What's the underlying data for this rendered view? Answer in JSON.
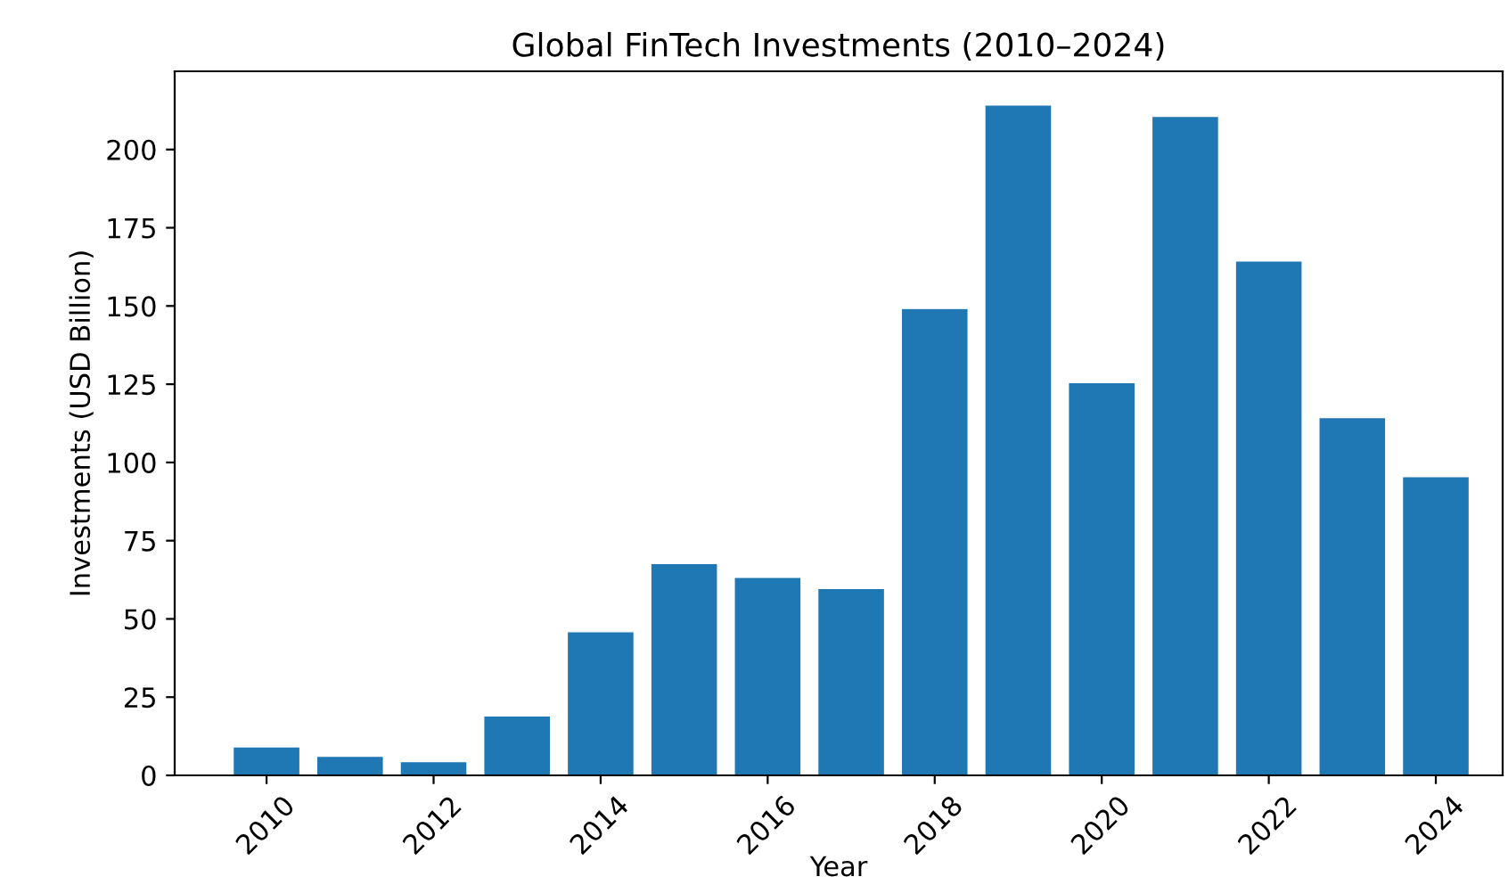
{
  "chart_data": {
    "type": "bar",
    "title": "Global FinTech Investments (2010–2024)",
    "xlabel": "Year",
    "ylabel": "Investments (USD Billion)",
    "x": [
      2010,
      2011,
      2012,
      2013,
      2014,
      2015,
      2016,
      2017,
      2018,
      2019,
      2020,
      2021,
      2022,
      2023,
      2024
    ],
    "values": [
      9.1,
      6.1,
      4.4,
      19,
      45.9,
      67.7,
      63.3,
      59.7,
      149.2,
      214.2,
      125.5,
      210.6,
      164.4,
      114.3,
      95.5
    ],
    "color": "#1f77b4",
    "xlim": [
      2008.9,
      2024.8
    ],
    "xticks": [
      2010,
      2012,
      2014,
      2016,
      2018,
      2020,
      2022,
      2024
    ],
    "ylim": [
      0,
      225
    ],
    "yticks": [
      0,
      25,
      50,
      75,
      100,
      125,
      150,
      175,
      200
    ],
    "grid": false
  }
}
